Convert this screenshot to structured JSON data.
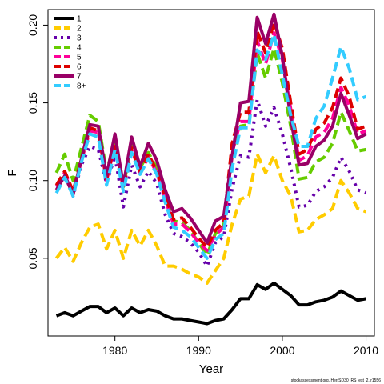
{
  "chart_data": {
    "type": "line",
    "xlabel": "Year",
    "ylabel": "F",
    "xlim": [
      1972,
      2011
    ],
    "ylim": [
      0,
      0.21
    ],
    "x_ticks": [
      "1980",
      "1990",
      "2000",
      "2010"
    ],
    "y_ticks": [
      "0.05",
      "0.10",
      "0.15",
      "0.20"
    ],
    "grid": false,
    "legend_position": "top-left",
    "credit": "stockassessment.org, HerrSD30_RS_est_2, r1556",
    "x": [
      1973,
      1974,
      1975,
      1976,
      1977,
      1978,
      1979,
      1980,
      1981,
      1982,
      1983,
      1984,
      1985,
      1986,
      1987,
      1988,
      1989,
      1990,
      1991,
      1992,
      1993,
      1994,
      1995,
      1996,
      1997,
      1998,
      1999,
      2000,
      2001,
      2002,
      2003,
      2004,
      2005,
      2006,
      2007,
      2008,
      2009,
      2010
    ],
    "series": [
      {
        "name": "1",
        "color": "#000000",
        "dash": "solid",
        "values": [
          0.013,
          0.015,
          0.013,
          0.016,
          0.019,
          0.019,
          0.015,
          0.018,
          0.013,
          0.018,
          0.015,
          0.017,
          0.016,
          0.013,
          0.011,
          0.011,
          0.01,
          0.009,
          0.008,
          0.01,
          0.011,
          0.017,
          0.024,
          0.024,
          0.033,
          0.03,
          0.034,
          0.03,
          0.026,
          0.02,
          0.02,
          0.022,
          0.023,
          0.025,
          0.029,
          0.026,
          0.023,
          0.024
        ]
      },
      {
        "name": "2",
        "color": "#FFCC00",
        "dash": "dash",
        "values": [
          0.05,
          0.057,
          0.048,
          0.06,
          0.07,
          0.072,
          0.056,
          0.068,
          0.05,
          0.068,
          0.058,
          0.068,
          0.058,
          0.045,
          0.045,
          0.043,
          0.04,
          0.038,
          0.034,
          0.042,
          0.05,
          0.072,
          0.088,
          0.09,
          0.117,
          0.105,
          0.116,
          0.1,
          0.09,
          0.067,
          0.068,
          0.075,
          0.078,
          0.082,
          0.1,
          0.092,
          0.082,
          0.08
        ]
      },
      {
        "name": "3",
        "color": "#6600AA",
        "dash": "dot",
        "values": [
          0.096,
          0.104,
          0.09,
          0.11,
          0.122,
          0.12,
          0.098,
          0.116,
          0.083,
          0.11,
          0.096,
          0.106,
          0.098,
          0.078,
          0.066,
          0.064,
          0.06,
          0.054,
          0.045,
          0.06,
          0.064,
          0.095,
          0.116,
          0.115,
          0.152,
          0.135,
          0.147,
          0.13,
          0.108,
          0.083,
          0.084,
          0.093,
          0.096,
          0.102,
          0.115,
          0.106,
          0.094,
          0.092
        ]
      },
      {
        "name": "4",
        "color": "#66CC00",
        "dash": "dash",
        "values": [
          0.105,
          0.117,
          0.1,
          0.121,
          0.142,
          0.138,
          0.105,
          0.127,
          0.096,
          0.124,
          0.108,
          0.118,
          0.108,
          0.09,
          0.074,
          0.073,
          0.068,
          0.06,
          0.052,
          0.066,
          0.071,
          0.113,
          0.135,
          0.136,
          0.182,
          0.166,
          0.185,
          0.163,
          0.135,
          0.101,
          0.102,
          0.112,
          0.115,
          0.124,
          0.144,
          0.132,
          0.119,
          0.12
        ]
      },
      {
        "name": "5",
        "color": "#FF0099",
        "dash": "dash",
        "values": [
          0.096,
          0.105,
          0.092,
          0.113,
          0.132,
          0.131,
          0.1,
          0.123,
          0.095,
          0.12,
          0.105,
          0.115,
          0.105,
          0.088,
          0.072,
          0.072,
          0.067,
          0.06,
          0.055,
          0.065,
          0.07,
          0.118,
          0.138,
          0.138,
          0.19,
          0.175,
          0.195,
          0.178,
          0.146,
          0.113,
          0.116,
          0.128,
          0.131,
          0.14,
          0.16,
          0.148,
          0.13,
          0.132
        ]
      },
      {
        "name": "6",
        "color": "#DD0000",
        "dash": "dash",
        "values": [
          0.097,
          0.106,
          0.093,
          0.114,
          0.134,
          0.132,
          0.101,
          0.124,
          0.096,
          0.121,
          0.106,
          0.117,
          0.106,
          0.09,
          0.075,
          0.076,
          0.07,
          0.063,
          0.057,
          0.068,
          0.073,
          0.124,
          0.144,
          0.144,
          0.196,
          0.182,
          0.202,
          0.185,
          0.15,
          0.117,
          0.12,
          0.133,
          0.137,
          0.147,
          0.166,
          0.154,
          0.133,
          0.135
        ]
      },
      {
        "name": "7",
        "color": "#990066",
        "dash": "solid",
        "values": [
          0.094,
          0.103,
          0.091,
          0.114,
          0.136,
          0.135,
          0.103,
          0.13,
          0.097,
          0.128,
          0.109,
          0.124,
          0.113,
          0.094,
          0.08,
          0.082,
          0.076,
          0.068,
          0.06,
          0.074,
          0.077,
          0.116,
          0.15,
          0.151,
          0.205,
          0.188,
          0.207,
          0.18,
          0.14,
          0.11,
          0.111,
          0.122,
          0.126,
          0.135,
          0.156,
          0.142,
          0.127,
          0.13
        ]
      },
      {
        "name": "8+",
        "color": "#33CCFF",
        "dash": "dash",
        "values": [
          0.092,
          0.102,
          0.09,
          0.112,
          0.13,
          0.128,
          0.097,
          0.12,
          0.093,
          0.118,
          0.104,
          0.114,
          0.104,
          0.086,
          0.07,
          0.068,
          0.064,
          0.057,
          0.05,
          0.062,
          0.066,
          0.108,
          0.134,
          0.134,
          0.184,
          0.178,
          0.194,
          0.168,
          0.142,
          0.122,
          0.122,
          0.14,
          0.148,
          0.166,
          0.186,
          0.172,
          0.152,
          0.154
        ]
      }
    ]
  }
}
